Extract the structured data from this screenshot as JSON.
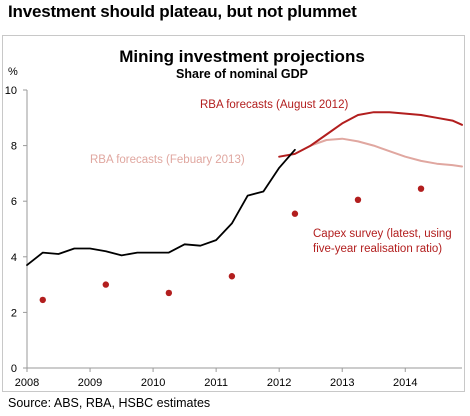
{
  "headline": "Investment should plateau, but not plummet",
  "source": "Source: ABS, RBA, HSBC estimates",
  "colors": {
    "actual": "#000000",
    "rba_aug_2012": "#b21e1e",
    "rba_feb_2013": "#e0a7a0",
    "capex": "#b21e1e",
    "axis": "#9a9a9a"
  },
  "chart_data": {
    "type": "line",
    "title": "Mining investment projections",
    "subtitle": "Share of nominal GDP",
    "ylabel": "%",
    "xlabel": "",
    "ylim": [
      0,
      10
    ],
    "xlim": [
      2008.0,
      2014.9
    ],
    "y_ticks": [
      "0",
      "2",
      "4",
      "6",
      "8",
      "10"
    ],
    "x_ticks": [
      "2008",
      "2009",
      "2010",
      "2011",
      "2012",
      "2013",
      "2014"
    ],
    "grid": false,
    "series": [
      {
        "key": "actual",
        "kind": "line",
        "x": [
          2008.0,
          2008.25,
          2008.5,
          2008.75,
          2009.0,
          2009.25,
          2009.5,
          2009.75,
          2010.0,
          2010.25,
          2010.5,
          2010.75,
          2011.0,
          2011.25,
          2011.5,
          2011.75,
          2012.0,
          2012.25
        ],
        "values": [
          3.7,
          4.15,
          4.1,
          4.3,
          4.3,
          4.2,
          4.05,
          4.15,
          4.15,
          4.15,
          4.45,
          4.4,
          4.6,
          5.2,
          6.2,
          6.35,
          7.2,
          7.85
        ]
      },
      {
        "key": "rba_aug_2012",
        "name": "RBA forecasts  (August 2012)",
        "kind": "line",
        "x": [
          2012.0,
          2012.25,
          2012.5,
          2012.75,
          2013.0,
          2013.25,
          2013.5,
          2013.75,
          2014.0,
          2014.25,
          2014.5,
          2014.75,
          2014.9
        ],
        "values": [
          7.6,
          7.7,
          8.0,
          8.4,
          8.8,
          9.1,
          9.2,
          9.2,
          9.15,
          9.1,
          9.0,
          8.9,
          8.75
        ]
      },
      {
        "key": "rba_feb_2013",
        "name": "RBA forecasts  (Febuary 2013)",
        "kind": "line",
        "x": [
          2012.5,
          2012.75,
          2013.0,
          2013.25,
          2013.5,
          2013.75,
          2014.0,
          2014.25,
          2014.5,
          2014.75,
          2014.9
        ],
        "values": [
          8.0,
          8.2,
          8.25,
          8.15,
          8.0,
          7.8,
          7.6,
          7.45,
          7.35,
          7.3,
          7.25
        ]
      },
      {
        "key": "capex",
        "name": "Capex survey (latest, using five-year realisation ratio)",
        "name_lines": [
          "Capex survey (latest, using",
          "five-year realisation ratio)"
        ],
        "kind": "scatter",
        "x": [
          2008.25,
          2009.25,
          2010.25,
          2011.25,
          2012.25,
          2013.25,
          2014.25
        ],
        "values": [
          2.45,
          3.0,
          2.7,
          3.3,
          5.55,
          6.05,
          6.45
        ]
      }
    ]
  }
}
